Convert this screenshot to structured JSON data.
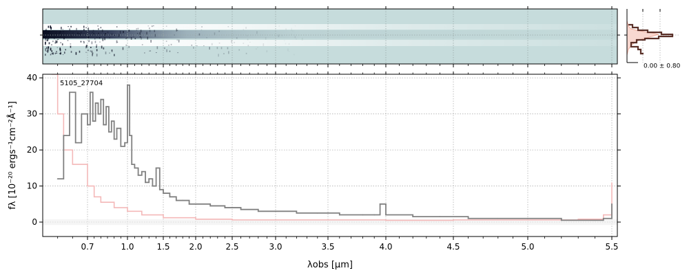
{
  "chart_data": {
    "type": "line",
    "object_label": "5105_27704",
    "xlabel": "λobs [μm]",
    "ylabel": "fλ [10⁻²⁰ ergs⁻¹cm⁻²Å⁻¹]",
    "x_scale": "nonlinear (wavelength axis)",
    "xlim": [
      0.55,
      5.52
    ],
    "ylim": [
      -4,
      41
    ],
    "x_tick_labels": [
      "0.7",
      "1.0",
      "1.5",
      "2.0",
      "2.5",
      "3.0",
      "3.5",
      "4.0",
      "4.5",
      "5.0",
      "5.5"
    ],
    "y_tick_labels": [
      "0",
      "10",
      "20",
      "30",
      "40"
    ],
    "grid": true,
    "series": [
      {
        "role": "flux",
        "color": "#808080",
        "x": [
          0.6,
          0.62,
          0.64,
          0.66,
          0.68,
          0.7,
          0.72,
          0.74,
          0.76,
          0.78,
          0.8,
          0.82,
          0.84,
          0.86,
          0.88,
          0.9,
          0.92,
          0.95,
          0.98,
          1.0,
          1.03,
          1.06,
          1.1,
          1.15,
          1.2,
          1.25,
          1.3,
          1.35,
          1.4,
          1.45,
          1.5,
          1.6,
          1.7,
          1.8,
          1.9,
          2.0,
          2.2,
          2.4,
          2.6,
          2.8,
          3.0,
          3.2,
          3.4,
          3.6,
          3.8,
          3.9,
          3.95,
          4.0,
          4.2,
          4.4,
          4.6,
          4.8,
          5.0,
          5.2,
          5.4,
          5.45,
          5.5
        ],
        "y": [
          12,
          24,
          36,
          22,
          30,
          27,
          36,
          28,
          33,
          30,
          34,
          27,
          32,
          25,
          28,
          23,
          26,
          21,
          22,
          38,
          24,
          16,
          15,
          13,
          14,
          11,
          12,
          10,
          15,
          9,
          8,
          7,
          6,
          6,
          5,
          5,
          4.5,
          4,
          3.5,
          3,
          3,
          2.5,
          2.5,
          2,
          2,
          2,
          5,
          2,
          1.5,
          1.5,
          1,
          1,
          1,
          0.5,
          0.5,
          1,
          5
        ]
      },
      {
        "role": "uncertainty",
        "color": "#f4b8b8",
        "x": [
          0.58,
          0.6,
          0.62,
          0.65,
          0.7,
          0.75,
          0.8,
          0.9,
          1.0,
          1.2,
          1.5,
          2.0,
          2.5,
          3.0,
          3.5,
          4.0,
          4.5,
          5.0,
          5.3,
          5.45,
          5.5
        ],
        "y": [
          41,
          30,
          20,
          16,
          10,
          7,
          5.5,
          4,
          3,
          2,
          1.2,
          0.8,
          0.6,
          0.6,
          0.6,
          0.5,
          0.6,
          0.6,
          0.8,
          2,
          11
        ]
      }
    ],
    "spectrum_2d_panel": {
      "type": "heatmap",
      "colormap": "dark blue-gray to light teal",
      "background_color": "#c6dcdc"
    },
    "profile_panel": {
      "type": "line",
      "annotation": "0.00 ± 0.80",
      "model_color": "#f5c8c0",
      "data_color": "#5a3028"
    }
  }
}
